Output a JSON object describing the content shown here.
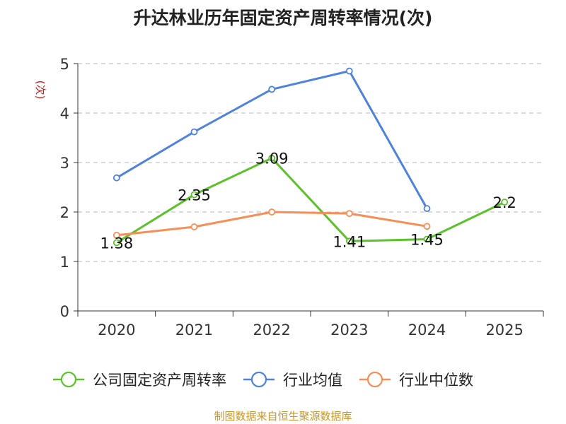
{
  "chart_data": {
    "type": "line",
    "title": "升达林业历年固定资产周转率情况(次)",
    "ylabel": "(次)",
    "xlabel": "",
    "categories": [
      "2020",
      "2021",
      "2022",
      "2023",
      "2024",
      "2025"
    ],
    "ylim": [
      0,
      5
    ],
    "yticks": [
      "0",
      "1",
      "2",
      "3",
      "4",
      "5"
    ],
    "grid": true,
    "legend_position": "bottom",
    "series": [
      {
        "name": "公司固定资产周转率",
        "color": "#5cc12b",
        "values": [
          1.38,
          2.35,
          3.09,
          1.41,
          1.45,
          2.2
        ],
        "labels": [
          "1.38",
          "2.35",
          "3.09",
          "1.41",
          "1.45",
          "2.2"
        ]
      },
      {
        "name": "行业均值",
        "color": "#4f82db",
        "values": [
          2.69,
          3.62,
          4.48,
          4.85,
          2.07,
          null
        ]
      },
      {
        "name": "行业中位数",
        "color": "#f58e57",
        "values": [
          1.53,
          1.7,
          2.0,
          1.97,
          1.71,
          null
        ]
      }
    ]
  },
  "source": "制图数据来自恒生聚源数据库"
}
